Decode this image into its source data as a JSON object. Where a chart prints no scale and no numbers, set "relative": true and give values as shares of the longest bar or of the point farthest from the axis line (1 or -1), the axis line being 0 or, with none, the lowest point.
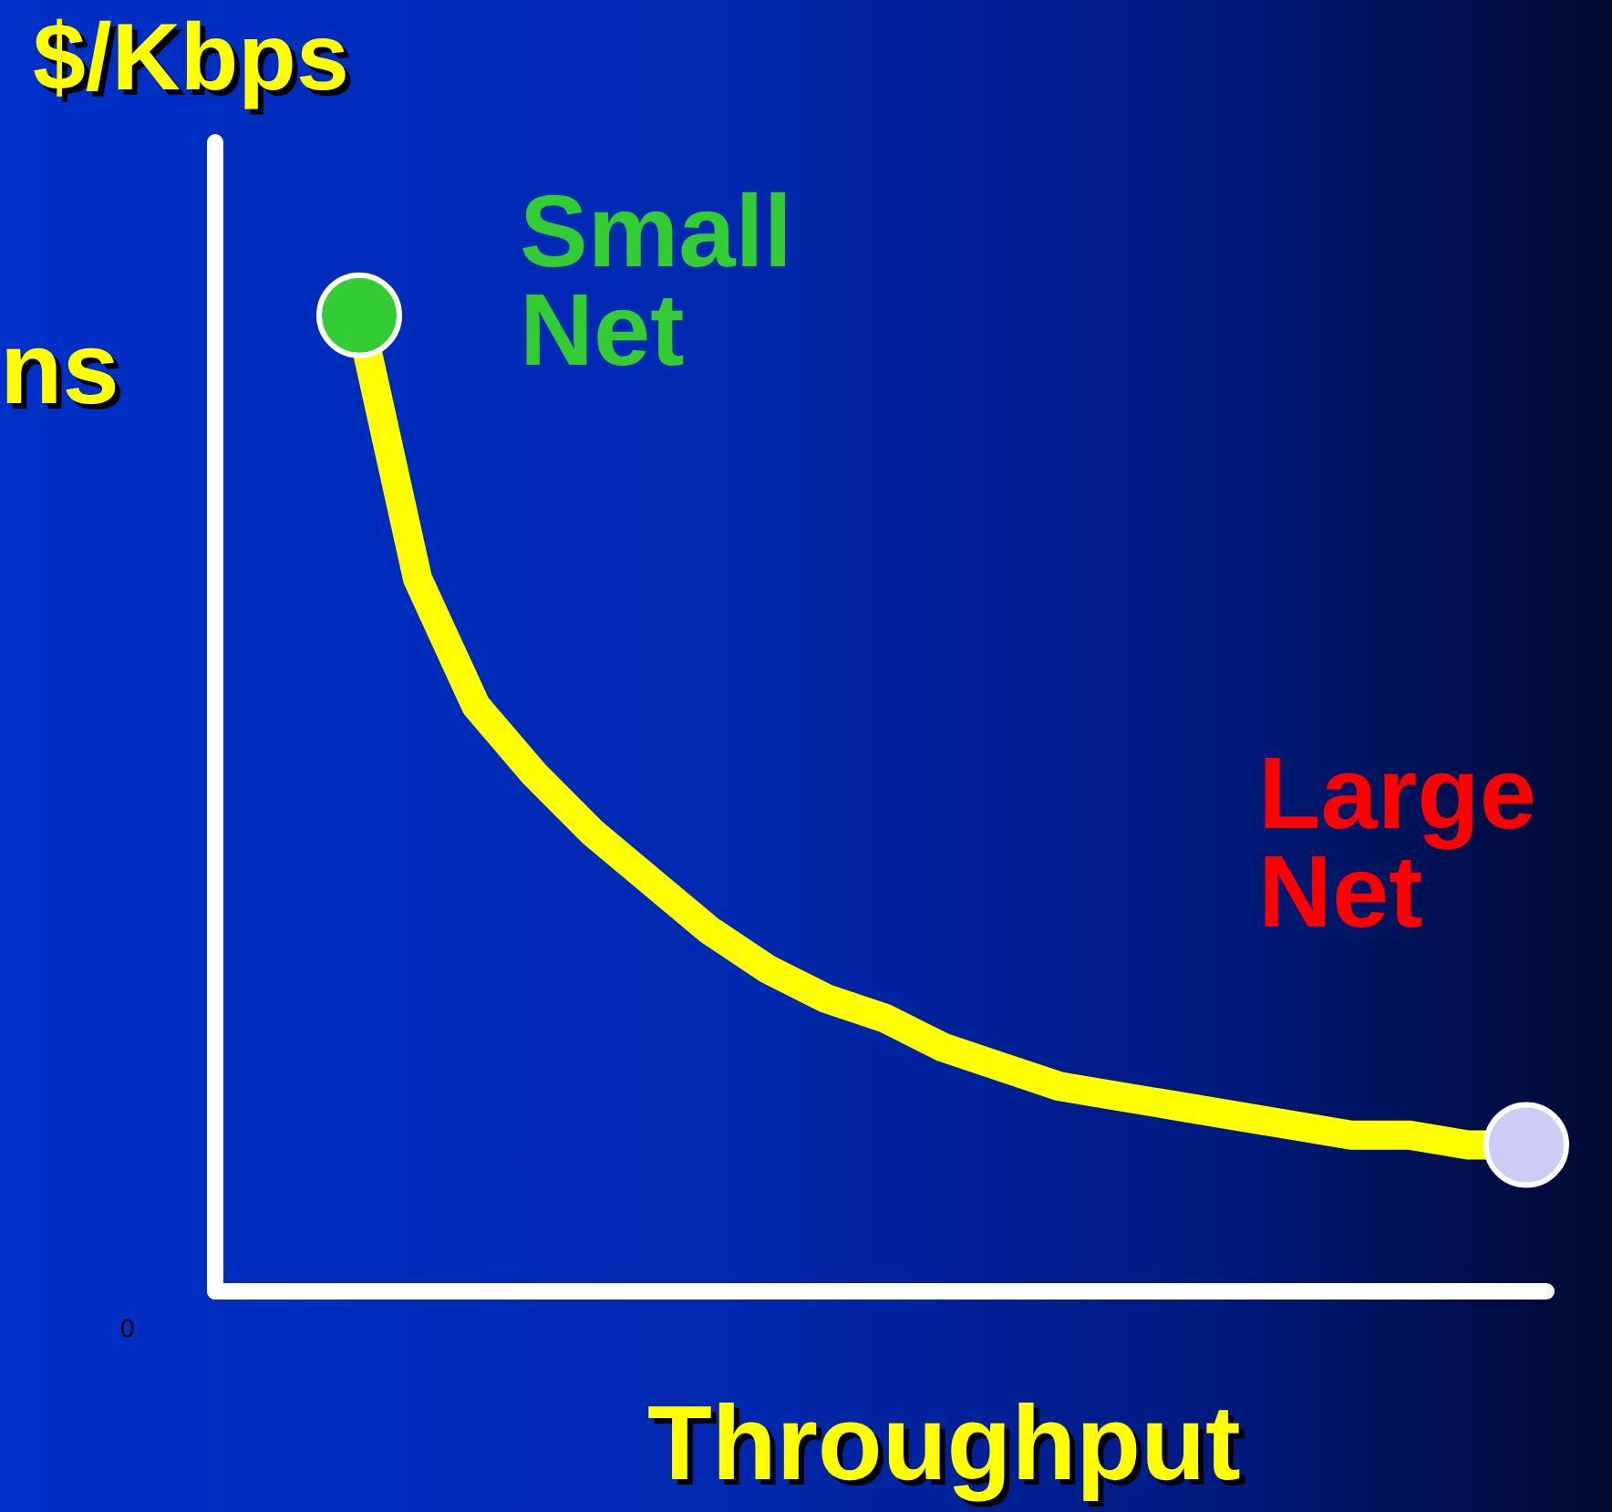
{
  "chart_data": {
    "type": "line",
    "xlabel": "Throughput",
    "ylabel": "$/Kbps",
    "relative": true,
    "categories": [
      null,
      null,
      null,
      null,
      null,
      null,
      null,
      null,
      null,
      null,
      null,
      null,
      null,
      null,
      null,
      null,
      null,
      null,
      null,
      null,
      null
    ],
    "series": [
      {
        "type": "line",
        "color": "#ffff00",
        "values": [
          1,
          0.73,
          0.6,
          0.53,
          0.47,
          0.42,
          0.37,
          0.33,
          0.3,
          0.28,
          0.25,
          0.23,
          0.21,
          0.2,
          0.19,
          0.18,
          0.17,
          0.16,
          0.16,
          0.15,
          0.15
        ],
        "colors": [
          "#33cc33",
          null,
          null,
          null,
          null,
          null,
          null,
          null,
          null,
          null,
          null,
          null,
          null,
          null,
          null,
          null,
          null,
          null,
          null,
          null,
          "#ccccf5"
        ]
      }
    ],
    "annotations": [
      "Small Net",
      "Large Net",
      "ns",
      "0"
    ],
    "grid": false,
    "legend": false
  }
}
